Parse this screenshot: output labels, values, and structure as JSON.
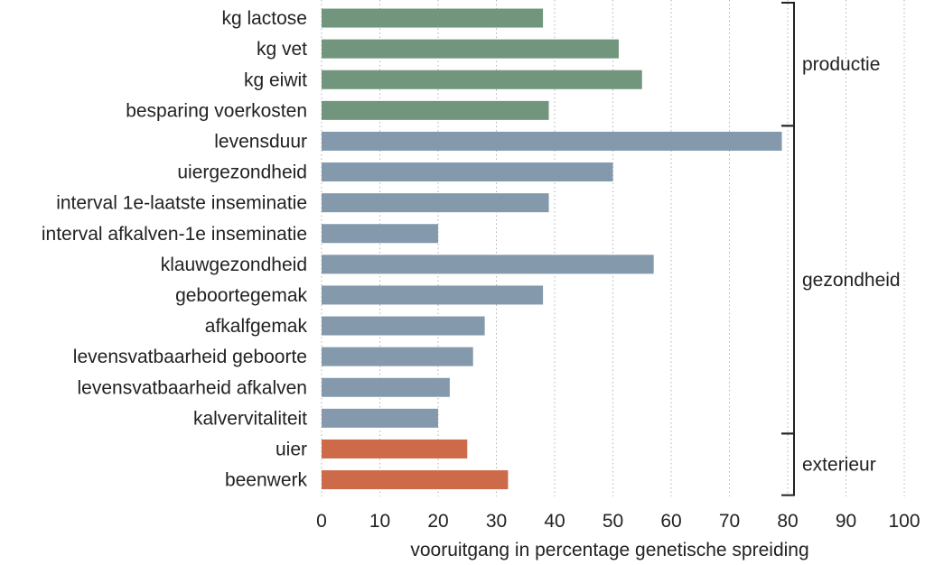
{
  "chart_data": {
    "type": "bar",
    "orientation": "horizontal",
    "xlabel": "vooruitgang in percentage genetische spreiding",
    "xlim": [
      0,
      100
    ],
    "xticks": [
      0,
      10,
      20,
      30,
      40,
      50,
      60,
      70,
      80,
      90,
      100
    ],
    "grid": "vertical dotted",
    "categories": [
      "kg lactose",
      "kg vet",
      "kg eiwit",
      "besparing voerkosten",
      "levensduur",
      "uiergezondheid",
      "interval 1e-laatste inseminatie",
      "interval afkalven-1e inseminatie",
      "klauwgezondheid",
      "geboortegemak",
      "afkalfgemak",
      "levensvatbaarheid geboorte",
      "levensvatbaarheid afkalven",
      "kalvervitaliteit",
      "uier",
      "beenwerk"
    ],
    "values": [
      38,
      51,
      55,
      39,
      79,
      50,
      39,
      20,
      57,
      38,
      28,
      26,
      22,
      20,
      25,
      32
    ],
    "groups": [
      {
        "label": "productie",
        "start": 0,
        "end": 3,
        "color": "#72967d"
      },
      {
        "label": "gezondheid",
        "start": 4,
        "end": 13,
        "color": "#8499ab"
      },
      {
        "label": "exterieur",
        "start": 14,
        "end": 15,
        "color": "#cd6a4a"
      }
    ]
  }
}
